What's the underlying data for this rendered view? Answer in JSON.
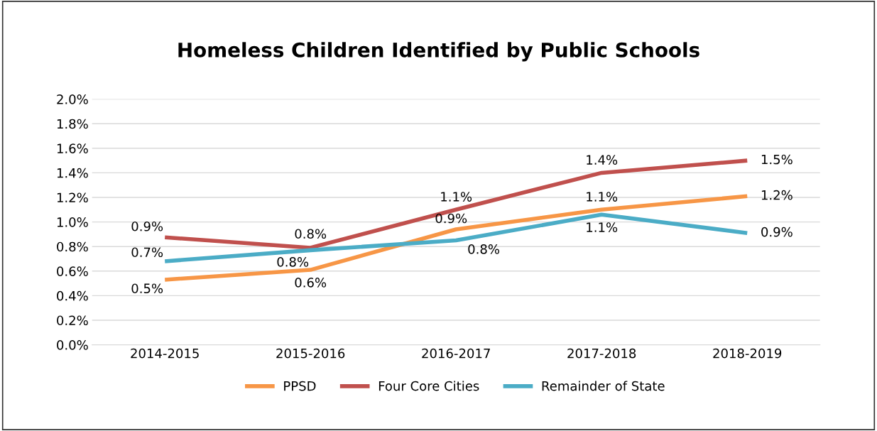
{
  "chart_data": {
    "type": "line",
    "title": "Homeless Children Identified by Public Schools",
    "categories": [
      "2014-2015",
      "2015-2016",
      "2016-2017",
      "2017-2018",
      "2018-2019"
    ],
    "series": [
      {
        "name": "PPSD",
        "color": "#f79646",
        "values": [
          0.53,
          0.61,
          0.94,
          1.1,
          1.21
        ],
        "value_labels": [
          "0.5%",
          "0.6%",
          "0.9%",
          "1.1%",
          "1.2%"
        ]
      },
      {
        "name": "Four Core Cities",
        "color": "#c0504d",
        "values": [
          0.875,
          0.79,
          1.1,
          1.4,
          1.5
        ],
        "value_labels": [
          "0.9%",
          "0.8%",
          "1.1%",
          "1.4%",
          "1.5%"
        ]
      },
      {
        "name": "Remainder of State",
        "color": "#4bacc6",
        "values": [
          0.68,
          0.77,
          0.85,
          1.06,
          0.91
        ],
        "value_labels": [
          "0.7%",
          "0.8%",
          "0.8%",
          "1.1%",
          "0.9%"
        ]
      }
    ],
    "ylim": [
      0,
      2.0
    ],
    "yticks": [
      {
        "value": 0,
        "label": "0.0%"
      },
      {
        "value": 0.2,
        "label": "0.2%"
      },
      {
        "value": 0.4,
        "label": "0.4%"
      },
      {
        "value": 0.6,
        "label": "0.6%"
      },
      {
        "value": 0.8,
        "label": "0.8%"
      },
      {
        "value": 1.0,
        "label": "1.0%"
      },
      {
        "value": 1.2,
        "label": "1.2%"
      },
      {
        "value": 1.4,
        "label": "1.4%"
      },
      {
        "value": 1.6,
        "label": "1.6%"
      },
      {
        "value": 1.8,
        "label": "1.8%"
      },
      {
        "value": 2.0,
        "label": "2.0%"
      }
    ],
    "grid": "y",
    "legend": "bottom",
    "marker": "none",
    "line_style": "solid"
  }
}
